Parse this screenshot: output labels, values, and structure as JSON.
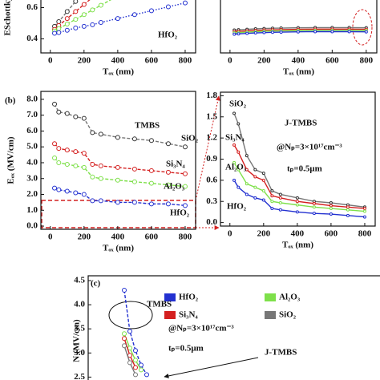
{
  "chart_data": [
    {
      "type": "line",
      "ylabel": "ESchottky",
      "xlabel": "Tₒₓ (nm)",
      "x": [
        25,
        50,
        100,
        150,
        200,
        250,
        300,
        400,
        500,
        600,
        700,
        800
      ],
      "xlim": [
        -56,
        862
      ],
      "xticks": [
        0,
        200,
        400,
        600,
        800
      ],
      "ylim": [
        0.31,
        0.7
      ],
      "yticks": [
        0.4,
        0.6
      ],
      "series": [
        {
          "color": "#777777",
          "values": [
            0.48,
            0.51,
            0.575,
            0.64,
            null,
            null,
            null,
            null,
            null,
            null,
            null,
            null
          ]
        },
        {
          "color": "#d42020",
          "values": [
            0.46,
            0.485,
            0.53,
            0.575,
            0.62,
            0.665,
            null,
            null,
            null,
            null,
            null,
            null
          ]
        },
        {
          "color": "#7ee04a",
          "values": [
            0.45,
            0.465,
            0.495,
            0.525,
            0.555,
            0.585,
            0.615,
            0.675,
            null,
            null,
            null,
            null
          ]
        },
        {
          "name": "HfO₂",
          "color": "#2230d0",
          "values": [
            0.436,
            0.44,
            0.455,
            0.47,
            0.48,
            0.49,
            0.505,
            0.53,
            0.555,
            0.58,
            0.605,
            0.63
          ]
        }
      ]
    },
    {
      "type": "line",
      "xlabel": "Tₒₓ (nm)",
      "x": [
        25,
        50,
        100,
        150,
        200,
        250,
        300,
        400,
        500,
        600,
        700,
        800
      ],
      "xlim": [
        -56,
        862
      ],
      "xticks": [
        0,
        200,
        400,
        600,
        800
      ],
      "ylim": [
        0.31,
        0.7
      ],
      "series": [
        {
          "color": "#777777",
          "values": [
            0.456,
            0.458,
            0.461,
            0.464,
            0.466,
            0.468,
            0.469,
            0.471,
            0.472,
            0.472,
            0.472,
            0.471
          ]
        },
        {
          "color": "#d42020",
          "values": [
            0.446,
            0.448,
            0.451,
            0.454,
            0.456,
            0.458,
            0.459,
            0.461,
            0.462,
            0.462,
            0.462,
            0.461
          ]
        },
        {
          "color": "#7ee04a",
          "values": [
            0.438,
            0.44,
            0.443,
            0.446,
            0.448,
            0.45,
            0.451,
            0.453,
            0.454,
            0.454,
            0.454,
            0.453
          ]
        },
        {
          "color": "#2230d0",
          "values": [
            0.43,
            0.432,
            0.435,
            0.438,
            0.44,
            0.442,
            0.443,
            0.445,
            0.446,
            0.446,
            0.446,
            0.445
          ]
        }
      ]
    },
    {
      "type": "line",
      "panel_label": "(b)",
      "ylabel": "Eₒₓ (MV/cm)",
      "xlabel": "Tₒₓ (nm)",
      "annotations": [
        "TMBS"
      ],
      "x": [
        25,
        50,
        100,
        150,
        200,
        250,
        300,
        400,
        500,
        600,
        700,
        800
      ],
      "xlim": [
        -56,
        862
      ],
      "xticks": [
        0,
        200,
        400,
        600,
        800
      ],
      "ylim": [
        -0.2,
        8.5
      ],
      "yticks": [
        {
          "value": 0,
          "label": "0.0"
        },
        {
          "value": 1,
          "label": "1.0"
        },
        {
          "value": 2,
          "label": "2.0"
        },
        {
          "value": 3,
          "label": "3.0"
        },
        {
          "value": 4,
          "label": "4.0"
        },
        {
          "value": 5,
          "label": "5.0"
        },
        {
          "value": 6,
          "label": "6.0"
        },
        {
          "value": 7,
          "label": "7.0"
        },
        {
          "value": 8,
          "label": "8.0"
        }
      ],
      "series": [
        {
          "name": "SiO₂",
          "color": "#777777",
          "values": [
            7.7,
            7.2,
            7.1,
            6.9,
            6.8,
            5.9,
            5.8,
            5.6,
            5.5,
            5.4,
            5.2,
            5.0
          ]
        },
        {
          "name": "Si₃N₄",
          "color": "#d42020",
          "values": [
            5.2,
            4.9,
            4.8,
            4.7,
            4.6,
            3.9,
            3.8,
            3.7,
            3.6,
            3.5,
            3.4,
            3.3
          ]
        },
        {
          "name": "Al₂O₃",
          "color": "#7ee04a",
          "values": [
            4.3,
            4.0,
            3.9,
            3.8,
            3.7,
            3.1,
            3.0,
            2.9,
            2.8,
            2.7,
            2.6,
            2.5
          ]
        },
        {
          "name": "HfO₂",
          "color": "#2230d0",
          "values": [
            2.4,
            2.3,
            2.2,
            2.1,
            2.0,
            1.6,
            1.6,
            1.5,
            1.5,
            1.4,
            1.4,
            1.3
          ]
        }
      ]
    },
    {
      "type": "line",
      "xlabel": "Tₒₓ (nm)",
      "annotations": [
        "J-TMBS",
        "@Nₚ=3×10¹⁷cm⁻³",
        "tₚ=0.5μm"
      ],
      "x": [
        25,
        50,
        100,
        150,
        200,
        250,
        300,
        400,
        500,
        600,
        700,
        800
      ],
      "xlim": [
        -56,
        862
      ],
      "xticks": [
        0,
        200,
        400,
        600,
        800
      ],
      "ylim": [
        -0.05,
        1.85
      ],
      "yticks": [
        {
          "value": 0,
          "label": "0.0"
        },
        0.3,
        0.6,
        0.9,
        1.2,
        1.5,
        1.8
      ],
      "series": [
        {
          "name": "SiO₂",
          "color": "#777777",
          "values": [
            1.55,
            1.4,
            0.95,
            0.75,
            0.7,
            0.45,
            0.4,
            0.35,
            0.3,
            0.28,
            0.25,
            0.22
          ]
        },
        {
          "name": "Si₃N₄",
          "color": "#d42020",
          "values": [
            1.1,
            1.0,
            0.75,
            0.65,
            0.6,
            0.38,
            0.35,
            0.3,
            0.27,
            0.24,
            0.22,
            0.2
          ]
        },
        {
          "name": "Al₂O₃",
          "color": "#7ee04a",
          "values": [
            0.85,
            0.75,
            0.55,
            0.5,
            0.45,
            0.3,
            0.28,
            0.25,
            0.22,
            0.2,
            0.18,
            0.16
          ]
        },
        {
          "name": "HfO₂",
          "color": "#2230d0",
          "values": [
            0.6,
            0.5,
            0.4,
            0.35,
            0.32,
            0.2,
            0.18,
            0.15,
            0.13,
            0.12,
            0.1,
            0.08
          ]
        }
      ]
    },
    {
      "type": "line",
      "panel_label": "(c)",
      "ylabel": "N (MV/cm)",
      "annotations": [
        "TMBS",
        "@Nₚ=3×10¹⁷cm⁻³",
        "tₚ=0.5μm",
        "J-TMBS"
      ],
      "categories": [
        null,
        null,
        null,
        null,
        null
      ],
      "ylim": [
        2.34,
        4.6
      ],
      "yticks": [
        2.5,
        {
          "value": 3,
          "label": "3.0"
        },
        3.5,
        {
          "value": 4,
          "label": "4.0"
        },
        4.5
      ],
      "legend": true,
      "series": [
        {
          "name": "HfO₂",
          "color": "#2230d0",
          "values": [
            4.3,
            3.45,
            3.05,
            2.75,
            2.55
          ]
        },
        {
          "name": "Al₂O₃",
          "color": "#7ee04a",
          "values": [
            3.4,
            3.1,
            2.85,
            2.65,
            null
          ]
        },
        {
          "name": "Si₃N₄",
          "color": "#d42020",
          "values": [
            3.3,
            2.95,
            2.7,
            null,
            null
          ]
        },
        {
          "name": "SiO₂",
          "color": "#777777",
          "values": [
            3.15,
            2.8,
            2.55,
            null,
            null
          ]
        }
      ]
    }
  ]
}
